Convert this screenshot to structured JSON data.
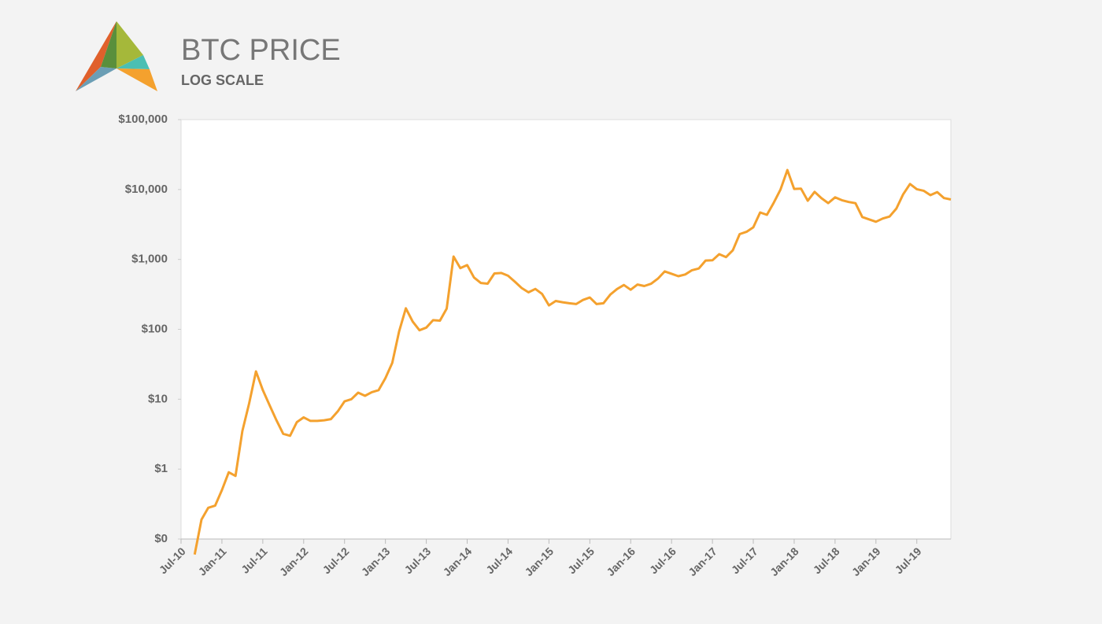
{
  "chart_data": {
    "type": "line",
    "title": "BTC PRICE",
    "subtitle": "LOG SCALE",
    "log_scale": true,
    "color": "#f4a12e",
    "xlim": [
      "2010-07",
      "2019-12"
    ],
    "xticks": [
      {
        "value": "2010-07",
        "label": "Jul-10"
      },
      {
        "value": "2011-01",
        "label": "Jan-11"
      },
      {
        "value": "2011-07",
        "label": "Jul-11"
      },
      {
        "value": "2012-01",
        "label": "Jan-12"
      },
      {
        "value": "2012-07",
        "label": "Jul-12"
      },
      {
        "value": "2013-01",
        "label": "Jan-13"
      },
      {
        "value": "2013-07",
        "label": "Jul-13"
      },
      {
        "value": "2014-01",
        "label": "Jan-14"
      },
      {
        "value": "2014-07",
        "label": "Jul-14"
      },
      {
        "value": "2015-01",
        "label": "Jan-15"
      },
      {
        "value": "2015-07",
        "label": "Jul-15"
      },
      {
        "value": "2016-01",
        "label": "Jan-16"
      },
      {
        "value": "2016-07",
        "label": "Jul-16"
      },
      {
        "value": "2017-01",
        "label": "Jan-17"
      },
      {
        "value": "2017-07",
        "label": "Jul-17"
      },
      {
        "value": "2018-01",
        "label": "Jan-18"
      },
      {
        "value": "2018-07",
        "label": "Jul-18"
      },
      {
        "value": "2019-01",
        "label": "Jan-19"
      },
      {
        "value": "2019-07",
        "label": "Jul-19"
      }
    ],
    "ylim": [
      0.1,
      100000
    ],
    "yticks": [
      {
        "value": 0.1,
        "label": "$0"
      },
      {
        "value": 1,
        "label": "$1"
      },
      {
        "value": 10,
        "label": "$10"
      },
      {
        "value": 100,
        "label": "$100"
      },
      {
        "value": 1000,
        "label": "$1,000"
      },
      {
        "value": 10000,
        "label": "$10,000"
      },
      {
        "value": 100000,
        "label": "$100,000"
      }
    ],
    "x": [
      "2010-09",
      "2010-10",
      "2010-11",
      "2010-12",
      "2011-01",
      "2011-02",
      "2011-03",
      "2011-04",
      "2011-05",
      "2011-06",
      "2011-07",
      "2011-08",
      "2011-09",
      "2011-10",
      "2011-11",
      "2011-12",
      "2012-01",
      "2012-02",
      "2012-03",
      "2012-04",
      "2012-05",
      "2012-06",
      "2012-07",
      "2012-08",
      "2012-09",
      "2012-10",
      "2012-11",
      "2012-12",
      "2013-01",
      "2013-02",
      "2013-03",
      "2013-04",
      "2013-05",
      "2013-06",
      "2013-07",
      "2013-08",
      "2013-09",
      "2013-10",
      "2013-11",
      "2013-12",
      "2014-01",
      "2014-02",
      "2014-03",
      "2014-04",
      "2014-05",
      "2014-06",
      "2014-07",
      "2014-08",
      "2014-09",
      "2014-10",
      "2014-11",
      "2014-12",
      "2015-01",
      "2015-02",
      "2015-03",
      "2015-04",
      "2015-05",
      "2015-06",
      "2015-07",
      "2015-08",
      "2015-09",
      "2015-10",
      "2015-11",
      "2015-12",
      "2016-01",
      "2016-02",
      "2016-03",
      "2016-04",
      "2016-05",
      "2016-06",
      "2016-07",
      "2016-08",
      "2016-09",
      "2016-10",
      "2016-11",
      "2016-12",
      "2017-01",
      "2017-02",
      "2017-03",
      "2017-04",
      "2017-05",
      "2017-06",
      "2017-07",
      "2017-08",
      "2017-09",
      "2017-10",
      "2017-11",
      "2017-12",
      "2018-01",
      "2018-02",
      "2018-03",
      "2018-04",
      "2018-05",
      "2018-06",
      "2018-07",
      "2018-08",
      "2018-09",
      "2018-10",
      "2018-11",
      "2018-12",
      "2019-01",
      "2019-02",
      "2019-03",
      "2019-04",
      "2019-05",
      "2019-06",
      "2019-07",
      "2019-08",
      "2019-09",
      "2019-10",
      "2019-11",
      "2019-12"
    ],
    "values": [
      0.06,
      0.19,
      0.28,
      0.3,
      0.5,
      0.9,
      0.8,
      3.5,
      8.7,
      25,
      13.5,
      8.2,
      5,
      3.2,
      3,
      4.7,
      5.5,
      4.9,
      4.9,
      5,
      5.2,
      6.7,
      9.3,
      10,
      12.4,
      11.2,
      12.6,
      13.5,
      20,
      33,
      93,
      200,
      129,
      97,
      106,
      135,
      133,
      198,
      1100,
      750,
      830,
      550,
      460,
      450,
      630,
      640,
      585,
      480,
      390,
      338,
      378,
      320,
      220,
      254,
      244,
      236,
      230,
      263,
      285,
      230,
      236,
      314,
      377,
      430,
      368,
      437,
      416,
      448,
      531,
      673,
      624,
      575,
      609,
      700,
      742,
      963,
      970,
      1190,
      1080,
      1350,
      2300,
      2480,
      2875,
      4700,
      4340,
      6470,
      10000,
      19000,
      10200,
      10300,
      6900,
      9250,
      7500,
      6400,
      7730,
      7030,
      6630,
      6370,
      4040,
      3740,
      3460,
      3850,
      4100,
      5350,
      8550,
      12000,
      10100,
      9600,
      8300,
      9200,
      7550,
      7200
    ]
  }
}
